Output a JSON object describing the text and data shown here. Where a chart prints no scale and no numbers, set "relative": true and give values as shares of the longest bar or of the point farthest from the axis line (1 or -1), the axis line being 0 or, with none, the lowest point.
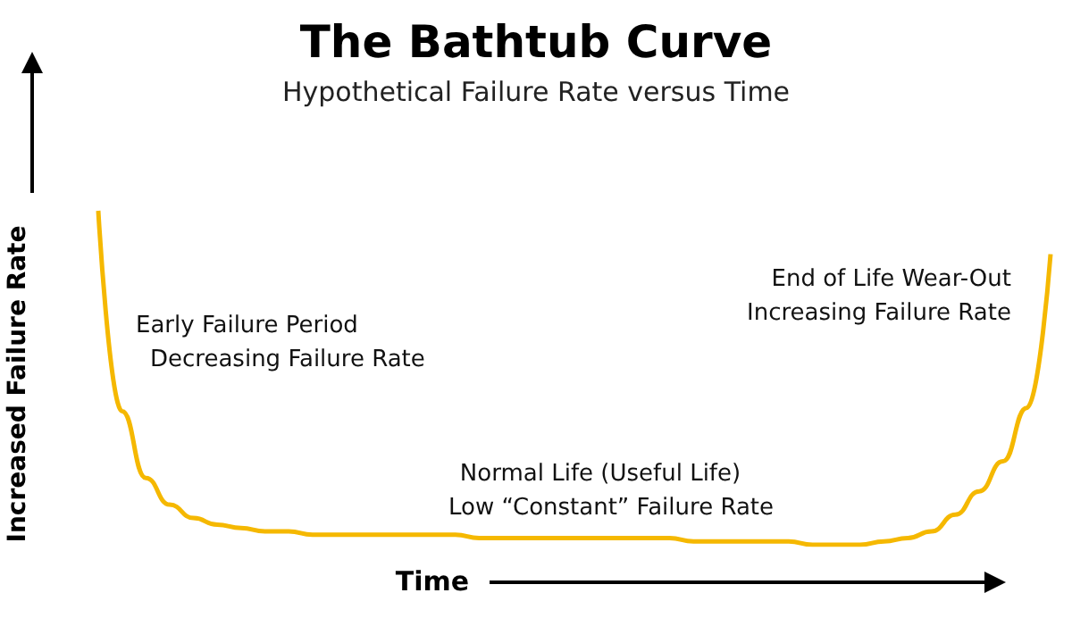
{
  "chart_data": {
    "type": "line",
    "title": "The Bathtub Curve",
    "subtitle": "Hypothetical Failure Rate versus Time",
    "xlabel": "Time",
    "ylabel": "Increased Failure Rate",
    "relative": true,
    "marker": "none",
    "categories": [
      null,
      null,
      null,
      null,
      null,
      null,
      null,
      null,
      null,
      null,
      null,
      null,
      null,
      null,
      null,
      null,
      null,
      null,
      null,
      null,
      null,
      null,
      null,
      null,
      null,
      null,
      null,
      null,
      null,
      null,
      null,
      null,
      null,
      null,
      null,
      null,
      null,
      null,
      null,
      null,
      null
    ],
    "series": [
      {
        "color": "#f5b800",
        "values": [
          1.0,
          0.4,
          0.2,
          0.12,
          0.08,
          0.06,
          0.05,
          0.04,
          0.04,
          0.03,
          0.03,
          0.03,
          0.03,
          0.03,
          0.03,
          0.03,
          0.02,
          0.02,
          0.02,
          0.02,
          0.02,
          0.02,
          0.02,
          0.02,
          0.02,
          0.01,
          0.01,
          0.01,
          0.01,
          0.01,
          0,
          0,
          0,
          0.01,
          0.02,
          0.04,
          0.09,
          0.16,
          0.25,
          0.41,
          0.87
        ]
      }
    ],
    "annotations": [
      "Early Failure Period",
      "Decreasing Failure Rate",
      "Normal Life (Useful Life)",
      "Low “Constant” Failure Rate",
      "End of Life Wear-Out",
      "Increasing Failure Rate"
    ]
  }
}
